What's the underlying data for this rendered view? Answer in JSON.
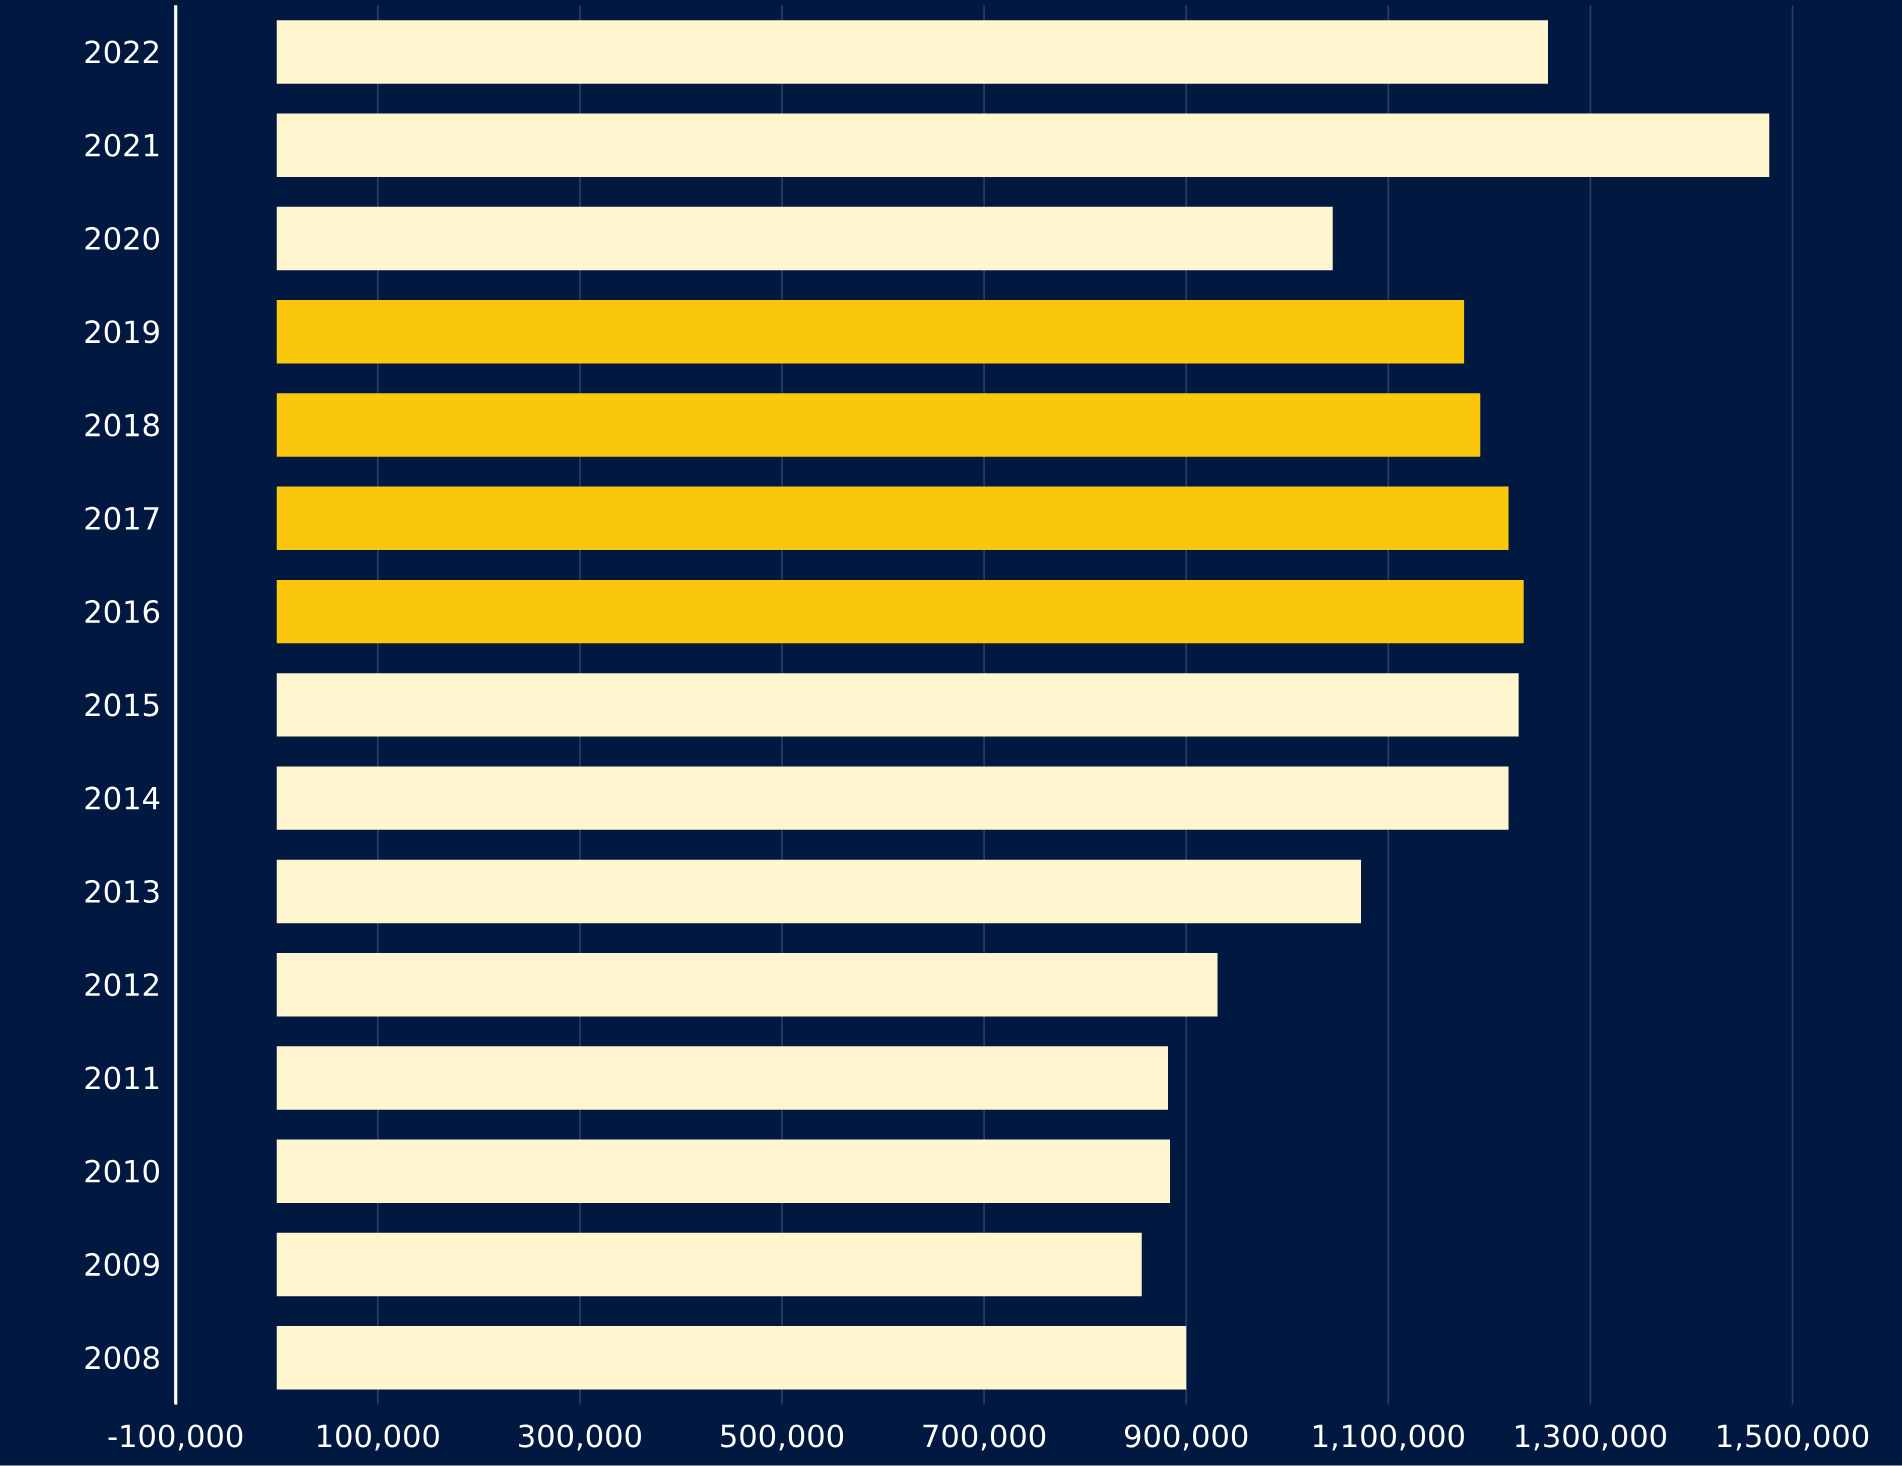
{
  "chart_data": {
    "type": "bar",
    "orientation": "horizontal",
    "categories": [
      "2022",
      "2021",
      "2020",
      "2019",
      "2018",
      "2017",
      "2016",
      "2015",
      "2014",
      "2013",
      "2012",
      "2011",
      "2010",
      "2009",
      "2008"
    ],
    "values": [
      1258000,
      1477000,
      1045000,
      1175000,
      1191000,
      1219000,
      1234000,
      1229000,
      1219000,
      1073000,
      931000,
      882000,
      884000,
      856000,
      900000
    ],
    "colors": [
      "#fff5cf",
      "#fff5cf",
      "#fff5cf",
      "#fbc70d",
      "#fbc70d",
      "#fbc70d",
      "#fbc70d",
      "#fff5cf",
      "#fff5cf",
      "#fff5cf",
      "#fff5cf",
      "#fff5cf",
      "#fff5cf",
      "#fff5cf",
      "#fff5cf"
    ],
    "xlim": [
      -100000,
      1500000
    ],
    "xticks": [
      {
        "value": -100000,
        "label": "-100,000"
      },
      {
        "value": 100000,
        "label": "100,000"
      },
      {
        "value": 300000,
        "label": "300,000"
      },
      {
        "value": 500000,
        "label": "500,000"
      },
      {
        "value": 700000,
        "label": "700,000"
      },
      {
        "value": 900000,
        "label": "900,000"
      },
      {
        "value": 1100000,
        "label": "1,100,000"
      },
      {
        "value": 1300000,
        "label": "1,300,000"
      },
      {
        "value": 1500000,
        "label": "1,500,000"
      }
    ],
    "grid": "x"
  }
}
